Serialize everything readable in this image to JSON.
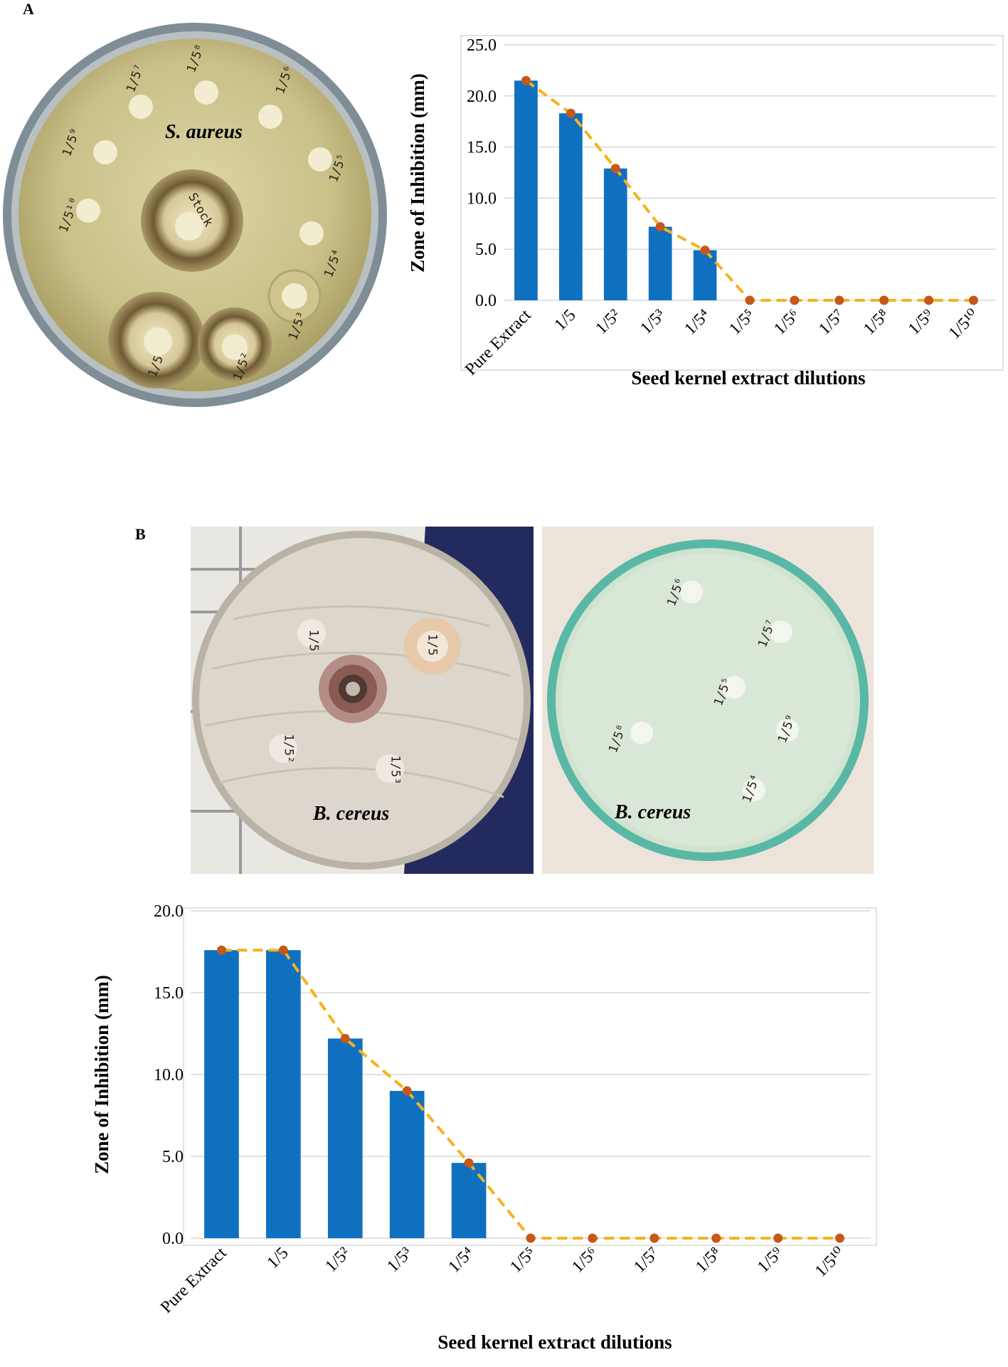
{
  "panels": {
    "a": {
      "letter": "A",
      "photo_label": "S. aureus"
    },
    "b": {
      "letter": "B",
      "photo_label_left": "B. cereus",
      "photo_label_right": "B. cereus"
    }
  },
  "colors": {
    "bar": "#1070c0",
    "trend_line": "#f5b21c",
    "trend_marker": "#c5581a",
    "grid": "#d9d9d9"
  },
  "plate_marks": {
    "a": [
      "1/5⁷",
      "1/5⁸",
      "1/5⁶",
      "1/5¹⁰",
      "1/5⁹",
      "1/5⁵",
      "1/5⁴",
      "Stock",
      "1/5",
      "1/5²",
      "1/5³"
    ],
    "b_left": [
      "1/5",
      "1/5",
      "1/5²",
      "1/5³"
    ],
    "b_right": [
      "1/5⁶",
      "1/5⁷",
      "1/5⁵",
      "1/5⁸",
      "1/5⁹",
      "1/5⁴"
    ]
  },
  "chart_data": [
    {
      "type": "bar",
      "categories": [
        "Pure Extract",
        "1/5",
        "1/5²",
        "1/5³",
        "1/5⁴",
        "1/5⁵",
        "1/5⁶",
        "1/5⁷",
        "1/5⁸",
        "1/5⁹",
        "1/5¹⁰"
      ],
      "series": [
        {
          "values": [
            21.5,
            18.3,
            12.9,
            7.2,
            4.9,
            0,
            0,
            0,
            0,
            0,
            0
          ]
        }
      ],
      "trend_line_values": [
        21.5,
        18.3,
        12.9,
        7.2,
        4.9,
        0,
        0,
        0,
        0,
        0,
        0
      ],
      "title": "",
      "xlabel": "Seed kernel extract dilutions",
      "ylabel": "Zone  of Inhibition  (mm)",
      "ylim": [
        0,
        25
      ],
      "yticks": [
        "0.0",
        "5.0",
        "10.0",
        "15.0",
        "20.0",
        "25.0"
      ],
      "grid": true
    },
    {
      "type": "bar",
      "categories": [
        "Pure Extract",
        "1/5",
        "1/5²",
        "1/5³",
        "1/5⁴",
        "1/5⁵",
        "1/5⁶",
        "1/5⁷",
        "1/5⁸",
        "1/5⁹",
        "1/5¹⁰"
      ],
      "series": [
        {
          "values": [
            17.6,
            17.6,
            12.2,
            9.0,
            4.6,
            0,
            0,
            0,
            0,
            0,
            0
          ]
        }
      ],
      "trend_line_values": [
        17.6,
        17.6,
        12.2,
        9.0,
        4.6,
        0,
        0,
        0,
        0,
        0,
        0
      ],
      "title": "",
      "xlabel": "Seed kernel extract dilutions",
      "ylabel": "Zone  of Inhibition  (mm)",
      "ylim": [
        0,
        20
      ],
      "yticks": [
        "0.0",
        "5.0",
        "10.0",
        "15.0",
        "20.0"
      ],
      "grid": true
    }
  ]
}
